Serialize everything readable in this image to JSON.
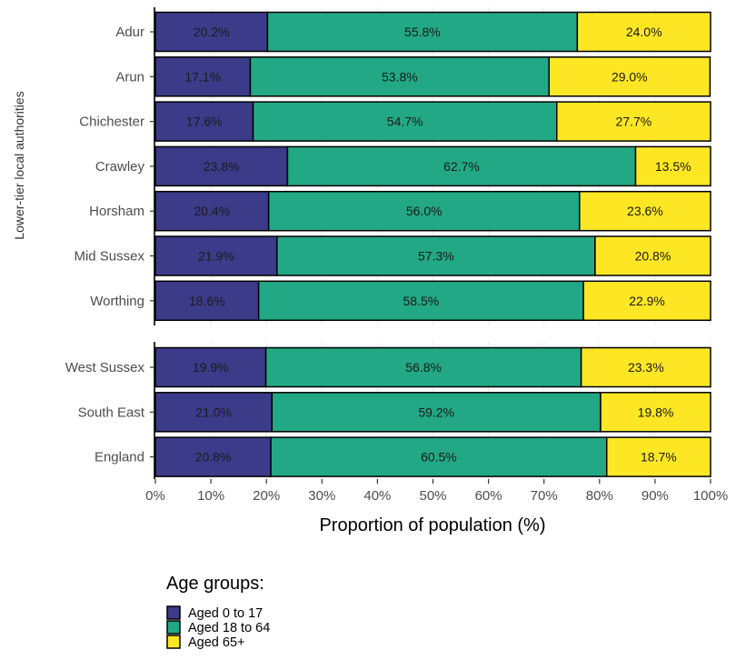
{
  "chart_data": {
    "type": "bar",
    "orientation": "horizontal",
    "stacked": true,
    "xlabel": "Proportion of population (%)",
    "ylabel": "Lower-tier local authorities",
    "xlim": [
      0,
      100
    ],
    "xticks": [
      "0%",
      "10%",
      "20%",
      "30%",
      "40%",
      "50%",
      "60%",
      "70%",
      "80%",
      "90%",
      "100%"
    ],
    "groups": [
      [
        "Adur",
        "Arun",
        "Chichester",
        "Crawley",
        "Horsham",
        "Mid Sussex",
        "Worthing"
      ],
      [
        "West Sussex",
        "South East",
        "England"
      ]
    ],
    "categories": [
      "Adur",
      "Arun",
      "Chichester",
      "Crawley",
      "Horsham",
      "Mid Sussex",
      "Worthing",
      "West Sussex",
      "South East",
      "England"
    ],
    "series": [
      {
        "name": "Aged 0 to 17",
        "color": "#3b3b8a",
        "values": [
          20.2,
          17.1,
          17.6,
          23.8,
          20.4,
          21.9,
          18.6,
          19.9,
          21.0,
          20.8
        ]
      },
      {
        "name": "Aged 18 to 64",
        "color": "#22a884",
        "values": [
          55.8,
          53.8,
          54.7,
          62.7,
          56.0,
          57.3,
          58.5,
          56.8,
          59.2,
          60.5
        ]
      },
      {
        "name": "Aged 65+",
        "color": "#fde725",
        "values": [
          24.0,
          29.0,
          27.7,
          13.5,
          23.6,
          20.8,
          22.9,
          23.3,
          19.8,
          18.7
        ]
      }
    ],
    "data_labels": [
      [
        "20.2%",
        "55.8%",
        "24.0%"
      ],
      [
        "17.1%",
        "53.8%",
        "29.0%"
      ],
      [
        "17.6%",
        "54.7%",
        "27.7%"
      ],
      [
        "23.8%",
        "62.7%",
        "13.5%"
      ],
      [
        "20.4%",
        "56.0%",
        "23.6%"
      ],
      [
        "21.9%",
        "57.3%",
        "20.8%"
      ],
      [
        "18.6%",
        "58.5%",
        "22.9%"
      ],
      [
        "19.9%",
        "56.8%",
        "23.3%"
      ],
      [
        "21.0%",
        "59.2%",
        "19.8%"
      ],
      [
        "20.8%",
        "60.5%",
        "18.7%"
      ]
    ],
    "legend": {
      "title": "Age groups:",
      "position": "bottom-left"
    },
    "grid": true
  }
}
